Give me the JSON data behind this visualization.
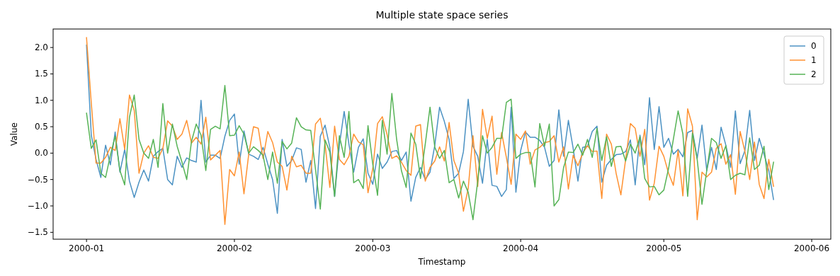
{
  "chart_data": {
    "type": "line",
    "title": "Multiple state space series",
    "xlabel": "Timestamp",
    "ylabel": "Value",
    "x": [
      "2000-01-01",
      "2000-01-02",
      "2000-01-03",
      "2000-01-04",
      "2000-01-05",
      "2000-01-06",
      "2000-01-07",
      "2000-01-08",
      "2000-01-09",
      "2000-01-10",
      "2000-01-11",
      "2000-01-12",
      "2000-01-13",
      "2000-01-14",
      "2000-01-15",
      "2000-01-16",
      "2000-01-17",
      "2000-01-18",
      "2000-01-19",
      "2000-01-20",
      "2000-01-21",
      "2000-01-22",
      "2000-01-23",
      "2000-01-24",
      "2000-01-25",
      "2000-01-26",
      "2000-01-27",
      "2000-01-28",
      "2000-01-29",
      "2000-01-30",
      "2000-01-31",
      "2000-02-01",
      "2000-02-02",
      "2000-02-03",
      "2000-02-04",
      "2000-02-05",
      "2000-02-06",
      "2000-02-07",
      "2000-02-08",
      "2000-02-09",
      "2000-02-10",
      "2000-02-11",
      "2000-02-12",
      "2000-02-13",
      "2000-02-14",
      "2000-02-15",
      "2000-02-16",
      "2000-02-17",
      "2000-02-18",
      "2000-02-19",
      "2000-02-20",
      "2000-02-21",
      "2000-02-22",
      "2000-02-23",
      "2000-02-24",
      "2000-02-25",
      "2000-02-26",
      "2000-02-27",
      "2000-02-28",
      "2000-02-29",
      "2000-03-01",
      "2000-03-02",
      "2000-03-03",
      "2000-03-04",
      "2000-03-05",
      "2000-03-06",
      "2000-03-07",
      "2000-03-08",
      "2000-03-09",
      "2000-03-10",
      "2000-03-11",
      "2000-03-12",
      "2000-03-13",
      "2000-03-14",
      "2000-03-15",
      "2000-03-16",
      "2000-03-17",
      "2000-03-18",
      "2000-03-19",
      "2000-03-20",
      "2000-03-21",
      "2000-03-22",
      "2000-03-23",
      "2000-03-24",
      "2000-03-25",
      "2000-03-26",
      "2000-03-27",
      "2000-03-28",
      "2000-03-29",
      "2000-03-30",
      "2000-03-31",
      "2000-04-01",
      "2000-04-02",
      "2000-04-03",
      "2000-04-04",
      "2000-04-05",
      "2000-04-06",
      "2000-04-07",
      "2000-04-08",
      "2000-04-09",
      "2000-04-10",
      "2000-04-11",
      "2000-04-12",
      "2000-04-13",
      "2000-04-14",
      "2000-04-15",
      "2000-04-16",
      "2000-04-17",
      "2000-04-18",
      "2000-04-19",
      "2000-04-20",
      "2000-04-21",
      "2000-04-22",
      "2000-04-23",
      "2000-04-24",
      "2000-04-25",
      "2000-04-26",
      "2000-04-27",
      "2000-04-28",
      "2000-04-29",
      "2000-04-30",
      "2000-05-01",
      "2000-05-02",
      "2000-05-03",
      "2000-05-04",
      "2000-05-05",
      "2000-05-06",
      "2000-05-07",
      "2000-05-08",
      "2000-05-09",
      "2000-05-10",
      "2000-05-11",
      "2000-05-12",
      "2000-05-13",
      "2000-05-14",
      "2000-05-15",
      "2000-05-16",
      "2000-05-17",
      "2000-05-18",
      "2000-05-19",
      "2000-05-20",
      "2000-05-21",
      "2000-05-22",
      "2000-05-23",
      "2000-05-24"
    ],
    "series": [
      {
        "name": "0",
        "color": "#4c92c3",
        "values": [
          2.05,
          0.34,
          -0.12,
          -0.46,
          0.15,
          -0.22,
          0.4,
          -0.36,
          0.07,
          -0.53,
          -0.84,
          -0.55,
          -0.32,
          -0.53,
          -0.06,
          0.03,
          0.09,
          -0.5,
          -0.6,
          -0.06,
          -0.27,
          -0.09,
          -0.14,
          -0.17,
          1.0,
          -0.17,
          -0.04,
          -0.04,
          -0.1,
          0.32,
          0.62,
          0.74,
          -0.21,
          0.42,
          -0.02,
          -0.06,
          -0.12,
          0.11,
          -0.21,
          -0.5,
          -1.14,
          0.26,
          -0.25,
          -0.14,
          0.1,
          0.07,
          -0.55,
          -0.14,
          -1.05,
          0.32,
          0.53,
          0.11,
          -0.82,
          0.15,
          0.79,
          0.17,
          -0.36,
          0.11,
          0.27,
          -0.38,
          -0.59,
          -0.02,
          -0.29,
          -0.17,
          0.03,
          0.05,
          -0.14,
          0.02,
          -0.91,
          -0.46,
          -0.27,
          -0.5,
          -0.36,
          0.15,
          0.87,
          0.6,
          0.26,
          -0.48,
          -0.38,
          0.03,
          1.02,
          0.13,
          -0.06,
          -0.57,
          0.26,
          -0.61,
          -0.63,
          -0.82,
          -0.69,
          0.87,
          -0.74,
          0.05,
          0.4,
          0.3,
          0.3,
          0.24,
          0.11,
          -0.25,
          -0.14,
          0.82,
          -0.06,
          0.62,
          0.09,
          -0.53,
          0.11,
          0.13,
          0.41,
          0.51,
          -0.55,
          -0.23,
          -0.12,
          -0.03,
          -0.02,
          0.03,
          0.25,
          -0.6,
          0.34,
          -0.22,
          1.05,
          0.07,
          0.88,
          0.11,
          0.28,
          -0.02,
          0.07,
          -0.07,
          0.39,
          0.43,
          -0.1,
          0.53,
          -0.33,
          0.11,
          -0.31,
          0.49,
          0.15,
          -0.27,
          0.8,
          -0.2,
          0.05,
          0.81,
          -0.14,
          0.28,
          -0.02,
          -0.33,
          -0.88
        ]
      },
      {
        "name": "1",
        "color": "#ff9232",
        "values": [
          2.19,
          0.95,
          -0.19,
          -0.19,
          -0.08,
          0.11,
          0.05,
          0.65,
          0.07,
          1.1,
          0.81,
          -0.38,
          0,
          0.14,
          -0.08,
          -0.1,
          0.09,
          0.61,
          0.51,
          0.26,
          0.36,
          0.62,
          0.19,
          0.3,
          0.17,
          0.68,
          -0.13,
          -0.04,
          0.05,
          -1.35,
          -0.31,
          -0.43,
          0.02,
          -0.77,
          -0.02,
          0.5,
          0.47,
          -0.1,
          0.41,
          0.2,
          -0.17,
          -0.25,
          -0.7,
          -0.06,
          -0.26,
          -0.23,
          -0.38,
          -0.38,
          0.55,
          0.66,
          0.17,
          -0.65,
          0.51,
          -0.12,
          -0.22,
          -0.06,
          0.36,
          0.21,
          0.16,
          -0.75,
          -0.29,
          0.56,
          0.69,
          0.35,
          -0.1,
          -0.05,
          -0.17,
          -0.33,
          -0.42,
          0.51,
          0.54,
          -0.53,
          -0.27,
          -0.15,
          0.12,
          -0.15,
          0.58,
          -0.14,
          -0.38,
          -1.1,
          -0.67,
          0.33,
          -0.63,
          0.83,
          0.28,
          0.7,
          -0.4,
          0.39,
          -0.08,
          -0.59,
          0.36,
          0.26,
          0.42,
          -0.21,
          0.06,
          0.11,
          0.2,
          0.22,
          0.33,
          -0.17,
          0.12,
          -0.68,
          -0.04,
          -0.24,
          0,
          0.14,
          0.03,
          0.04,
          -0.86,
          0.36,
          0.17,
          -0.38,
          -0.79,
          -0.12,
          0.56,
          0.47,
          -0.06,
          0.45,
          -0.89,
          -0.57,
          0.13,
          -0.06,
          -0.38,
          -0.61,
          0.05,
          -0.81,
          0.84,
          0.51,
          -1.26,
          -0.36,
          -0.45,
          -0.36,
          0.09,
          0.18,
          -0.21,
          -0.03,
          -0.78,
          0.41,
          0.03,
          -0.5,
          0.21,
          -0.59,
          -0.86,
          -0.12,
          -0.63
        ]
      },
      {
        "name": "2",
        "color": "#56b356",
        "values": [
          0.76,
          0.09,
          0.25,
          -0.38,
          -0.46,
          -0.04,
          0.32,
          -0.33,
          -0.6,
          0.68,
          1.1,
          0.26,
          0,
          -0.1,
          0.26,
          -0.27,
          0.94,
          0,
          0.55,
          0.13,
          -0.17,
          -0.5,
          0.22,
          0.55,
          0.34,
          -0.33,
          0.45,
          0.51,
          0.46,
          1.28,
          0.33,
          0.34,
          0.52,
          0.36,
          0,
          0.12,
          0.05,
          -0.04,
          -0.5,
          0.02,
          -0.57,
          0.22,
          0.08,
          0.19,
          0.67,
          0.5,
          0.44,
          0.43,
          -0.31,
          -1.06,
          0.25,
          0.02,
          -0.82,
          0.33,
          -0.08,
          0.79,
          -0.56,
          -0.5,
          -0.67,
          0.52,
          -0.21,
          -0.8,
          0.62,
          -0.02,
          1.13,
          0.26,
          -0.33,
          -0.65,
          0.38,
          0.17,
          -0.48,
          0.17,
          0.87,
          0.11,
          -0.1,
          0.05,
          -0.56,
          -0.5,
          -0.85,
          -0.53,
          -0.74,
          -1.26,
          -0.53,
          0.33,
          0,
          0.11,
          0.28,
          0.28,
          0.96,
          1.02,
          -0.1,
          -0.02,
          0.01,
          0.01,
          -0.64,
          0.56,
          0.13,
          0.55,
          -1.0,
          -0.88,
          -0.27,
          0.02,
          0.01,
          0.17,
          -0.04,
          0.26,
          -0.08,
          0.47,
          -0.14,
          0.31,
          -0.25,
          0.12,
          0.13,
          -0.15,
          0.17,
          0,
          0.31,
          -0.48,
          -0.64,
          -0.63,
          -0.79,
          -0.7,
          -0.29,
          0.26,
          0.8,
          0.36,
          -0.82,
          0.38,
          -0.12,
          -0.97,
          -0.33,
          0.28,
          0.2,
          -0.1,
          0.14,
          -0.5,
          -0.42,
          -0.38,
          -0.41,
          0.29,
          -0.31,
          -0.23,
          0.13,
          -0.69,
          -0.17
        ]
      }
    ],
    "xlim": [
      "1999-12-25",
      "2000-06-05"
    ],
    "xticks": [
      {
        "value": "2000-01-01",
        "label": "2000-01"
      },
      {
        "value": "2000-02-01",
        "label": "2000-02"
      },
      {
        "value": "2000-03-01",
        "label": "2000-03"
      },
      {
        "value": "2000-04-01",
        "label": "2000-04"
      },
      {
        "value": "2000-05-01",
        "label": "2000-05"
      },
      {
        "value": "2000-06-01",
        "label": "2000-06"
      }
    ],
    "ylim": [
      -1.63,
      2.35
    ],
    "yticks": [
      {
        "value": -1.5,
        "label": "−1.5"
      },
      {
        "value": -1,
        "label": "−1.0"
      },
      {
        "value": -0.5,
        "label": "−0.5"
      },
      {
        "value": 0,
        "label": "0.0"
      },
      {
        "value": 0.5,
        "label": "0.5"
      },
      {
        "value": 1,
        "label": "1.0"
      },
      {
        "value": 1.5,
        "label": "1.5"
      },
      {
        "value": 2,
        "label": "2.0"
      }
    ],
    "grid": false,
    "legend": "top right",
    "marker": "none",
    "line_style": "solid"
  }
}
